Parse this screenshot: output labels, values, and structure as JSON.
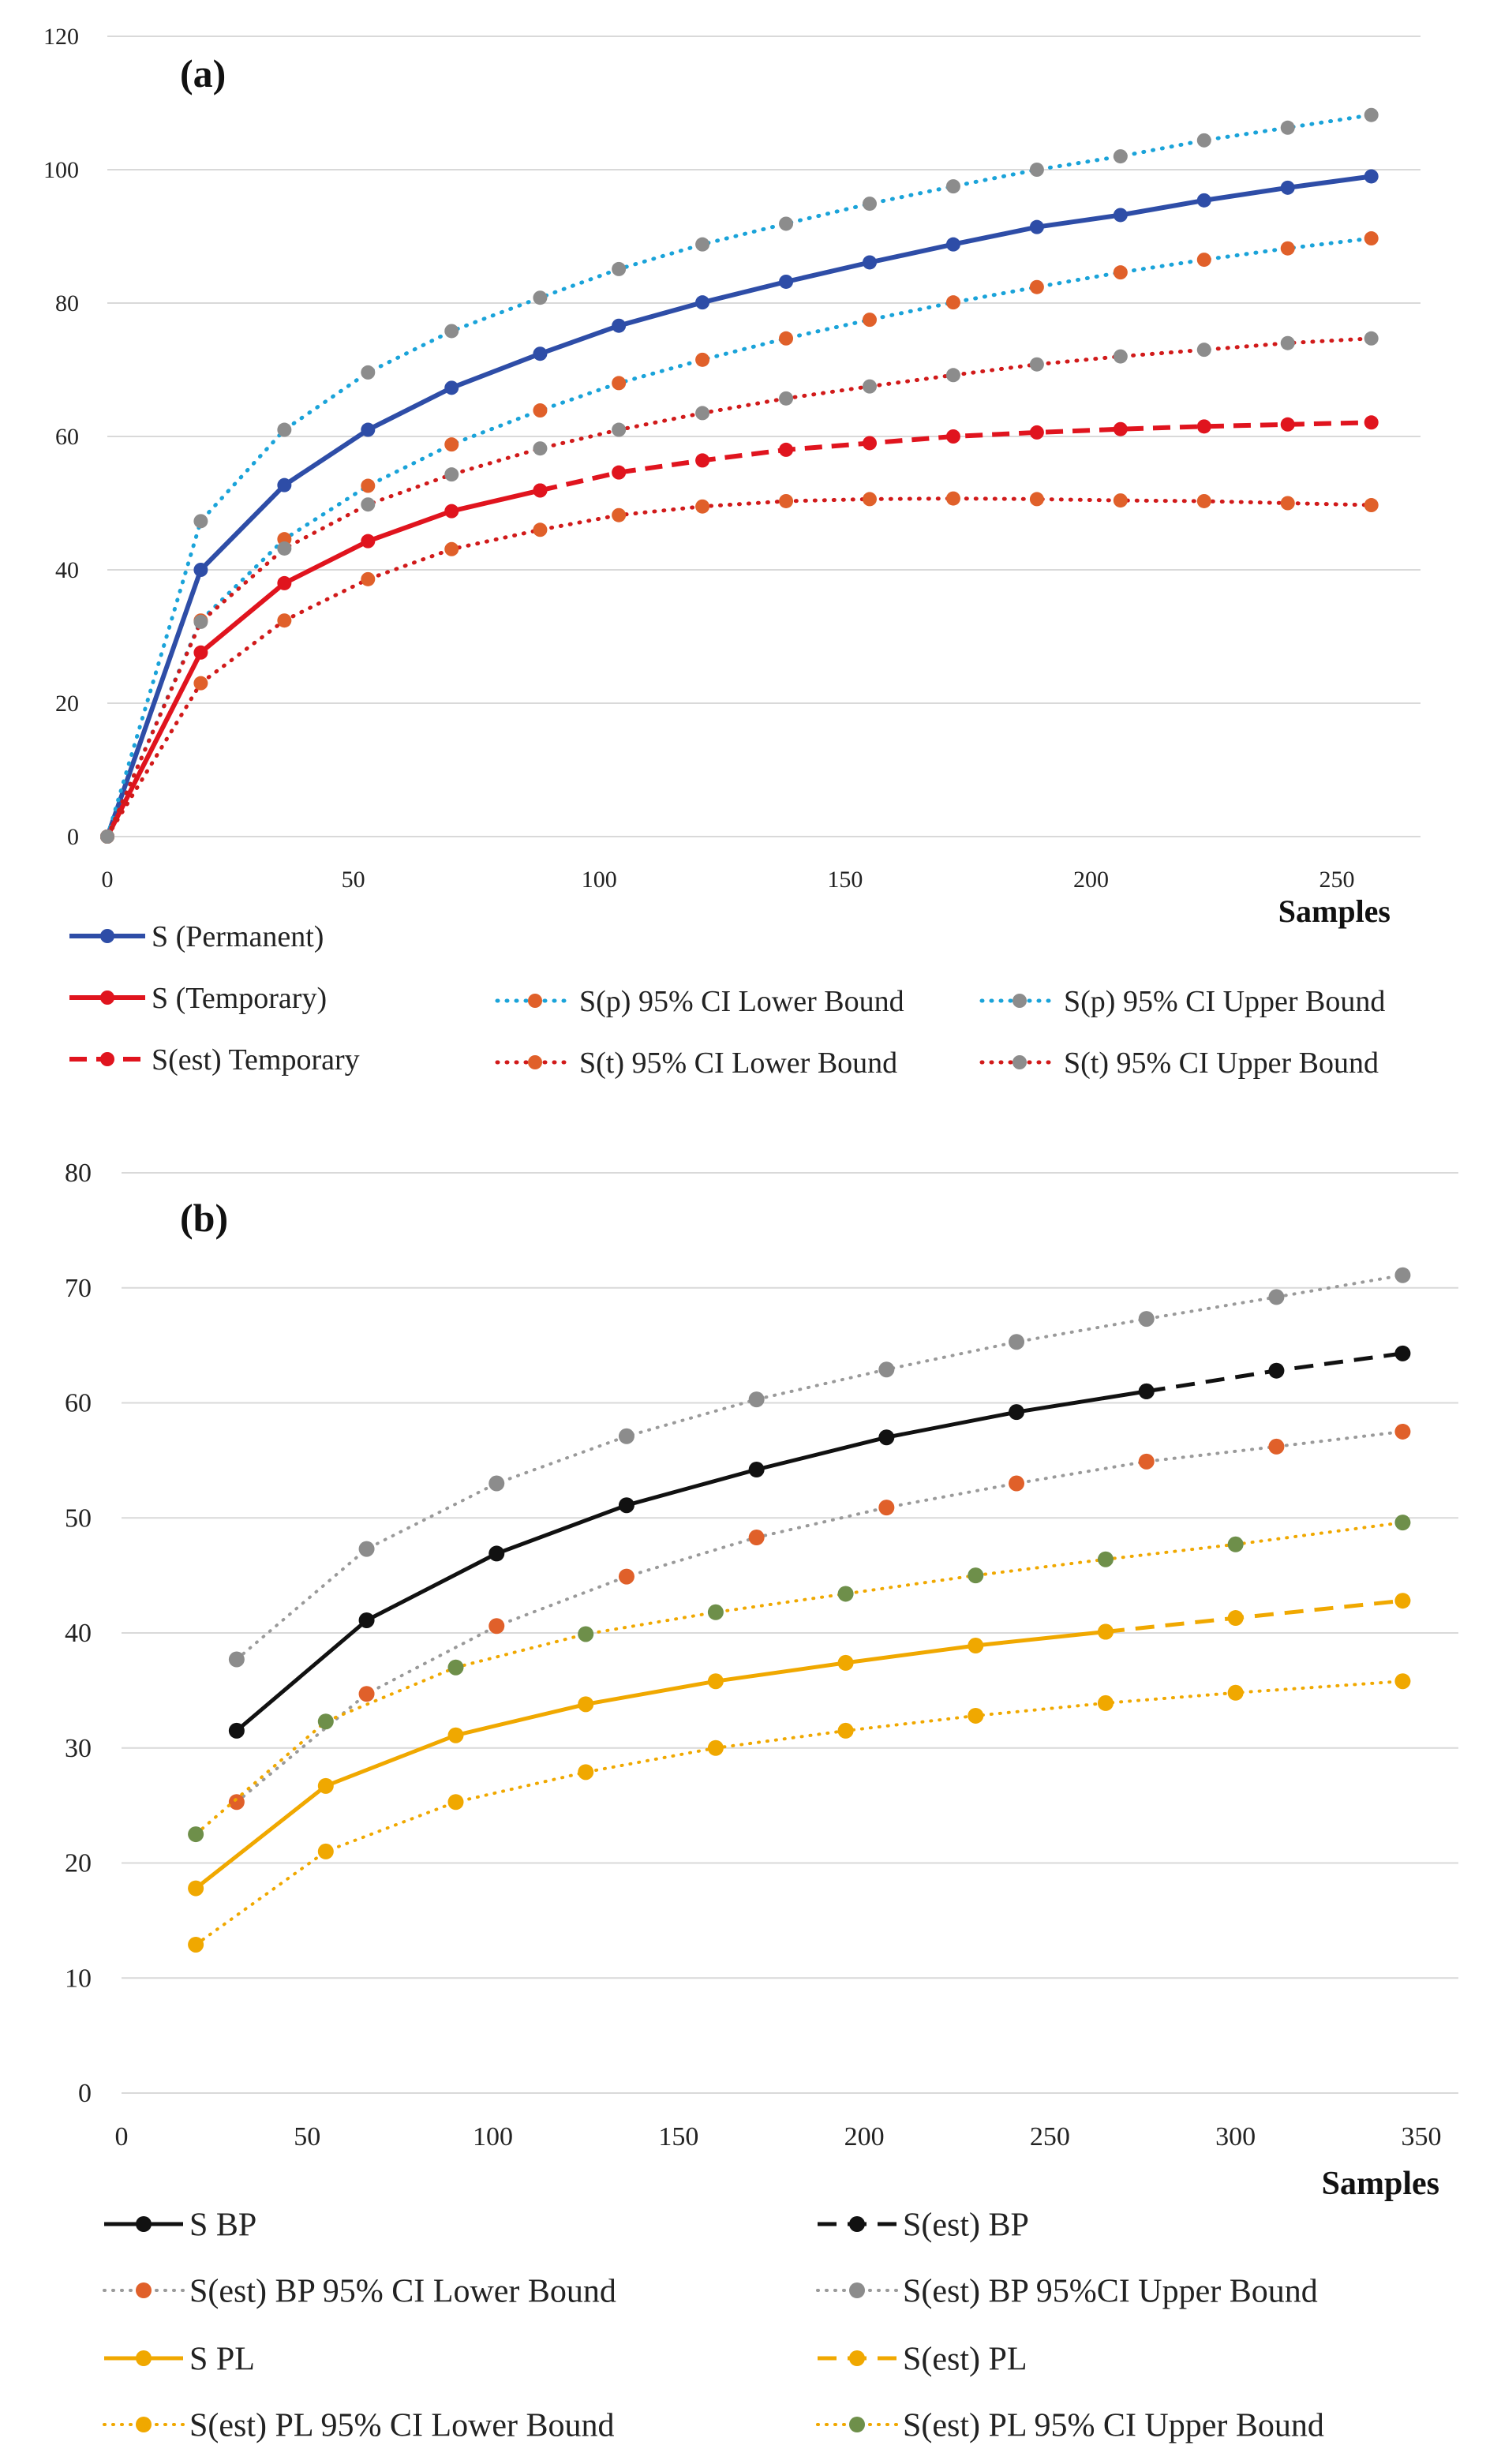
{
  "chart_data": [
    {
      "type": "line",
      "panel_label": "(a)",
      "xlabel": "Samples",
      "ylabel": "",
      "xlim": [
        0,
        267
      ],
      "ylim": [
        0,
        120
      ],
      "x_ticks": [
        0,
        50,
        100,
        150,
        200,
        250
      ],
      "y_ticks": [
        0,
        20,
        40,
        60,
        80,
        100,
        120
      ],
      "grid": "horizontal",
      "legend": "bottom",
      "series": [
        {
          "name": "S (Permanent)",
          "color": "#2E4DA7",
          "style": "solid",
          "x": [
            0,
            19,
            36,
            53,
            70,
            88,
            104,
            121,
            138,
            155,
            172,
            189,
            206,
            223,
            240,
            257
          ],
          "y": [
            0,
            40,
            52.7,
            61,
            67.3,
            72.4,
            76.6,
            80.1,
            83.2,
            86.1,
            88.8,
            91.4,
            93.2,
            95.4,
            97.3,
            99
          ]
        },
        {
          "name": "S (Temporary)",
          "color": "#E0141E",
          "style": "solid",
          "x": [
            0,
            19,
            36,
            53,
            70,
            88
          ],
          "y": [
            0,
            27.6,
            38,
            44.3,
            48.8,
            51.9
          ]
        },
        {
          "name": "S(est) Temporary",
          "color": "#E0141E",
          "style": "dashed",
          "x": [
            88,
            104,
            121,
            138,
            155,
            172,
            189,
            206,
            223,
            240,
            257
          ],
          "y": [
            51.9,
            54.6,
            56.4,
            58,
            59,
            60,
            60.6,
            61.1,
            61.5,
            61.8,
            62.1
          ]
        },
        {
          "name": "S(p) 95% CI Lower Bound",
          "color": "#1AA3D9",
          "marker": "#E0602A",
          "style": "dotted",
          "x": [
            0,
            19,
            36,
            53,
            70,
            88,
            104,
            121,
            138,
            155,
            172,
            189,
            206,
            223,
            240,
            257
          ],
          "y": [
            0,
            32.4,
            44.6,
            52.6,
            58.8,
            63.9,
            68,
            71.5,
            74.7,
            77.5,
            80.1,
            82.4,
            84.6,
            86.5,
            88.2,
            89.7
          ]
        },
        {
          "name": "S(p) 95% CI Upper Bound",
          "color": "#1AA3D9",
          "marker": "#8C8C8C",
          "style": "dotted",
          "x": [
            0,
            19,
            36,
            53,
            70,
            88,
            104,
            121,
            138,
            155,
            172,
            189,
            206,
            223,
            240,
            257
          ],
          "y": [
            0,
            47.3,
            61,
            69.6,
            75.8,
            80.8,
            85.1,
            88.8,
            91.9,
            94.9,
            97.5,
            100,
            102,
            104.4,
            106.3,
            108.2
          ]
        },
        {
          "name": "S(t) 95% CI Lower Bound",
          "color": "#D11A1A",
          "marker": "#E0602A",
          "style": "dotted",
          "x": [
            0,
            19,
            36,
            53,
            70,
            88,
            104,
            121,
            138,
            155,
            172,
            189,
            206,
            223,
            240,
            257
          ],
          "y": [
            0,
            23,
            32.4,
            38.6,
            43.1,
            46,
            48.2,
            49.5,
            50.3,
            50.6,
            50.7,
            50.6,
            50.4,
            50.3,
            50,
            49.7
          ]
        },
        {
          "name": "S(t) 95% CI Upper Bound",
          "color": "#D11A1A",
          "marker": "#8C8C8C",
          "style": "dotted",
          "x": [
            0,
            19,
            36,
            53,
            70,
            88,
            104,
            121,
            138,
            155,
            172,
            189,
            206,
            223,
            240,
            257
          ],
          "y": [
            0,
            32.2,
            43.2,
            49.8,
            54.3,
            58.2,
            61,
            63.5,
            65.7,
            67.5,
            69.2,
            70.8,
            72,
            73,
            74,
            74.7
          ]
        }
      ]
    },
    {
      "type": "line",
      "panel_label": "(b)",
      "xlabel": "Samples",
      "ylabel": "",
      "xlim": [
        0,
        360
      ],
      "ylim": [
        0,
        80
      ],
      "x_ticks": [
        0,
        50,
        100,
        150,
        200,
        250,
        300,
        350
      ],
      "y_ticks": [
        0,
        10,
        20,
        30,
        40,
        50,
        60,
        70,
        80
      ],
      "grid": "horizontal",
      "legend": "bottom",
      "series": [
        {
          "name": "S BP",
          "color": "#111111",
          "style": "solid",
          "x": [
            31,
            66,
            101,
            136,
            171,
            206,
            241,
            276
          ],
          "y": [
            31.5,
            41.1,
            46.9,
            51.1,
            54.2,
            57,
            59.2,
            61
          ]
        },
        {
          "name": "S(est) BP",
          "color": "#111111",
          "style": "dashed",
          "x": [
            276,
            311,
            345
          ],
          "y": [
            61,
            62.8,
            64.3
          ]
        },
        {
          "name": "S(est) BP 95% CI Lower Bound",
          "color": "#9A9A9A",
          "marker": "#E0602A",
          "style": "dotted",
          "x": [
            31,
            66,
            101,
            136,
            171,
            206,
            241,
            276,
            311,
            345
          ],
          "y": [
            25.3,
            34.7,
            40.6,
            44.9,
            48.3,
            50.9,
            53,
            54.9,
            56.2,
            57.5
          ]
        },
        {
          "name": "S(est) BP 95%CI Upper Bound",
          "color": "#9A9A9A",
          "marker": "#8C8C8C",
          "style": "dotted",
          "x": [
            31,
            66,
            101,
            136,
            171,
            206,
            241,
            276,
            311,
            345
          ],
          "y": [
            37.7,
            47.3,
            53,
            57.1,
            60.3,
            62.9,
            65.3,
            67.3,
            69.2,
            71.1
          ]
        },
        {
          "name": "S PL",
          "color": "#F0A800",
          "style": "solid",
          "x": [
            20,
            55,
            90,
            125,
            160,
            195,
            230,
            265
          ],
          "y": [
            17.8,
            26.7,
            31.1,
            33.8,
            35.8,
            37.4,
            38.9,
            40.1
          ]
        },
        {
          "name": "S(est) PL",
          "color": "#F0A800",
          "style": "dashed",
          "x": [
            265,
            300,
            345
          ],
          "y": [
            40.1,
            41.3,
            42.8
          ]
        },
        {
          "name": "S(est) PL 95% CI Lower Bound",
          "color": "#F0A800",
          "marker": "#F0A800",
          "style": "dotted",
          "x": [
            20,
            55,
            90,
            125,
            160,
            195,
            230,
            265,
            300,
            345
          ],
          "y": [
            12.9,
            21,
            25.3,
            27.9,
            30,
            31.5,
            32.8,
            33.9,
            34.8,
            35.8
          ]
        },
        {
          "name": "S(est) PL 95% CI Upper Bound",
          "color": "#F0A800",
          "marker": "#6E8F4A",
          "style": "dotted",
          "x": [
            20,
            55,
            90,
            125,
            160,
            195,
            230,
            265,
            300,
            345
          ],
          "y": [
            22.5,
            32.3,
            37,
            39.9,
            41.8,
            43.4,
            45,
            46.4,
            47.7,
            49.6
          ]
        }
      ]
    }
  ]
}
